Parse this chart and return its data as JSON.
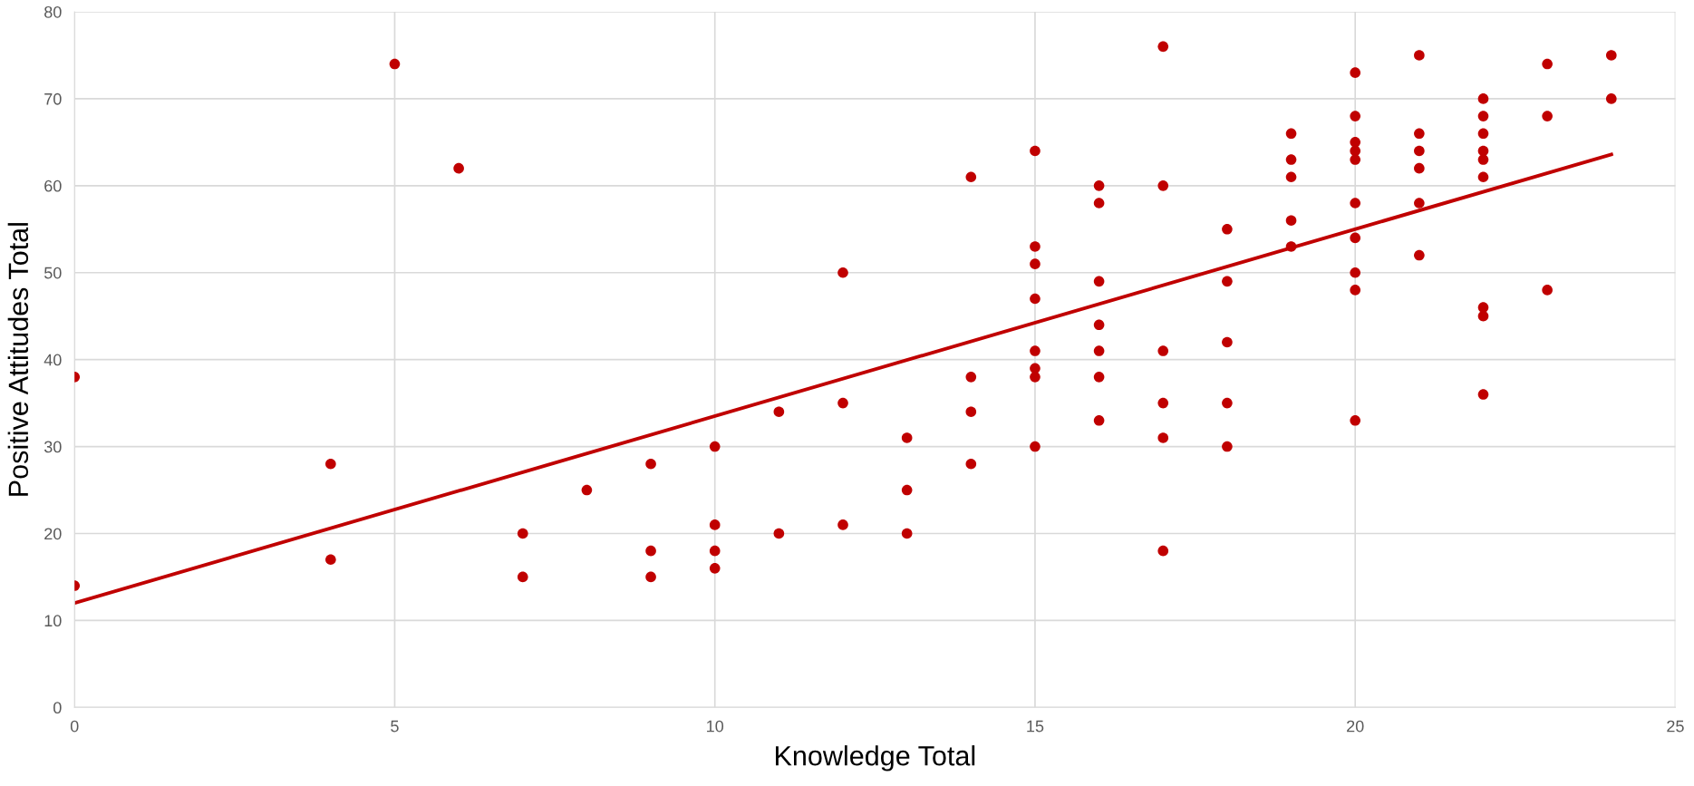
{
  "chart_data": {
    "type": "scatter",
    "xlabel": "Knowledge Total",
    "ylabel": "Positive Attitudes Total",
    "xlim": [
      0,
      25
    ],
    "xticks": [
      0,
      5,
      10,
      15,
      20,
      25
    ],
    "ylim": [
      0,
      80
    ],
    "yticks": [
      0,
      10,
      20,
      30,
      40,
      50,
      60,
      70,
      80
    ],
    "grid": true,
    "marker": "circle",
    "series": [
      {
        "color": "#c00000",
        "x": [
          0,
          0,
          4,
          4,
          5,
          6,
          7,
          7,
          8,
          9,
          9,
          9,
          10,
          10,
          10,
          10,
          11,
          11,
          12,
          12,
          12,
          13,
          13,
          13,
          14,
          14,
          14,
          14,
          15,
          15,
          15,
          15,
          15,
          15,
          15,
          15,
          16,
          16,
          16,
          16,
          16,
          16,
          16,
          17,
          17,
          17,
          17,
          17,
          17,
          18,
          18,
          18,
          18,
          18,
          19,
          19,
          19,
          19,
          19,
          20,
          20,
          20,
          20,
          20,
          20,
          20,
          20,
          20,
          20,
          21,
          21,
          21,
          21,
          21,
          21,
          22,
          22,
          22,
          22,
          22,
          22,
          22,
          22,
          22,
          23,
          23,
          23,
          24,
          24
        ],
        "values": [
          38,
          14,
          28,
          17,
          74,
          62,
          20,
          15,
          25,
          28,
          18,
          15,
          30,
          21,
          18,
          16,
          34,
          20,
          50,
          35,
          21,
          31,
          25,
          20,
          61,
          38,
          34,
          28,
          64,
          53,
          51,
          47,
          41,
          39,
          38,
          30,
          60,
          58,
          49,
          44,
          41,
          38,
          33,
          76,
          60,
          41,
          35,
          31,
          18,
          55,
          49,
          42,
          35,
          30,
          66,
          63,
          61,
          56,
          53,
          73,
          68,
          65,
          64,
          63,
          58,
          54,
          50,
          48,
          33,
          75,
          66,
          64,
          62,
          58,
          52,
          70,
          68,
          66,
          64,
          63,
          61,
          46,
          45,
          36,
          74,
          68,
          48,
          75,
          70
        ]
      },
      {
        "type": "line",
        "color": "#c00000",
        "x": [
          0,
          24
        ],
        "values": [
          12,
          63.6
        ],
        "marker": "none",
        "line_style": "solid"
      }
    ]
  }
}
